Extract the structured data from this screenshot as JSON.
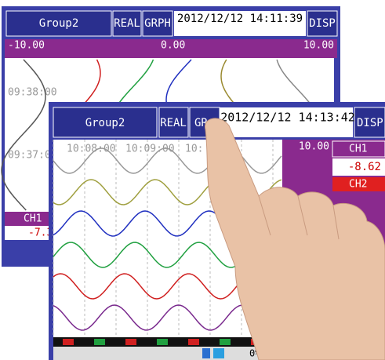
{
  "back_screen": {
    "group": "Group2",
    "real": "REAL",
    "grph": "GRPH",
    "datetime": "2012/12/12 14:11:39",
    "disp": "DISP",
    "scale_min": "-10.00",
    "scale_mid": "0.00",
    "scale_max": "10.00",
    "time_labels": [
      "09:38:00",
      "09:37:00"
    ],
    "channel": "CH1",
    "channel_value": "-7.3"
  },
  "front_screen": {
    "group": "Group2",
    "real": "REAL",
    "grph": "GR",
    "datetime": "2012/12/12 14:13:42",
    "disp": "DISP",
    "time_labels": [
      "10:08:00",
      "10:09:00",
      "10:"
    ],
    "scale_max": "10.00",
    "channels": [
      {
        "name": "CH1",
        "value": "-8.62"
      },
      {
        "name": "CH2"
      }
    ],
    "status": "0% R"
  }
}
